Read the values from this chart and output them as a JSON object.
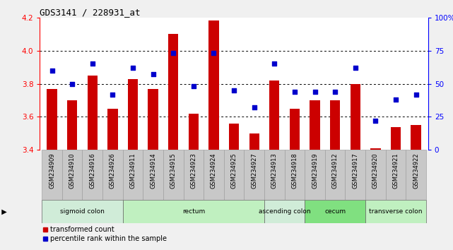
{
  "title": "GDS3141 / 228931_at",
  "samples": [
    "GSM234909",
    "GSM234910",
    "GSM234916",
    "GSM234926",
    "GSM234911",
    "GSM234914",
    "GSM234915",
    "GSM234923",
    "GSM234924",
    "GSM234925",
    "GSM234927",
    "GSM234913",
    "GSM234918",
    "GSM234919",
    "GSM234912",
    "GSM234917",
    "GSM234920",
    "GSM234921",
    "GSM234922"
  ],
  "bar_values": [
    3.77,
    3.7,
    3.85,
    3.65,
    3.83,
    3.77,
    4.1,
    3.62,
    4.18,
    3.56,
    3.5,
    3.82,
    3.65,
    3.7,
    3.7,
    3.8,
    3.41,
    3.54,
    3.55
  ],
  "dot_values": [
    60,
    50,
    65,
    42,
    62,
    57,
    73,
    48,
    73,
    45,
    32,
    65,
    44,
    44,
    44,
    62,
    22,
    38,
    42
  ],
  "ylim_left": [
    3.4,
    4.2
  ],
  "ylim_right": [
    0,
    100
  ],
  "yticks_left": [
    3.4,
    3.6,
    3.8,
    4.0,
    4.2
  ],
  "yticks_right": [
    0,
    25,
    50,
    75,
    100
  ],
  "grid_lines": [
    3.6,
    3.8,
    4.0
  ],
  "tissue_groups": [
    {
      "label": "sigmoid colon",
      "start": 0,
      "end": 4,
      "color": "#d0ecd8"
    },
    {
      "label": "rectum",
      "start": 4,
      "end": 11,
      "color": "#c0f0c0"
    },
    {
      "label": "ascending colon",
      "start": 11,
      "end": 13,
      "color": "#d0ecd8"
    },
    {
      "label": "cecum",
      "start": 13,
      "end": 16,
      "color": "#80e080"
    },
    {
      "label": "transverse colon",
      "start": 16,
      "end": 19,
      "color": "#c0f0c0"
    }
  ],
  "bar_color": "#cc0000",
  "dot_color": "#0000cc",
  "bar_width": 0.5,
  "fig_bg": "#f0f0f0",
  "plot_bg": "#ffffff",
  "tick_bg": "#c8c8c8"
}
